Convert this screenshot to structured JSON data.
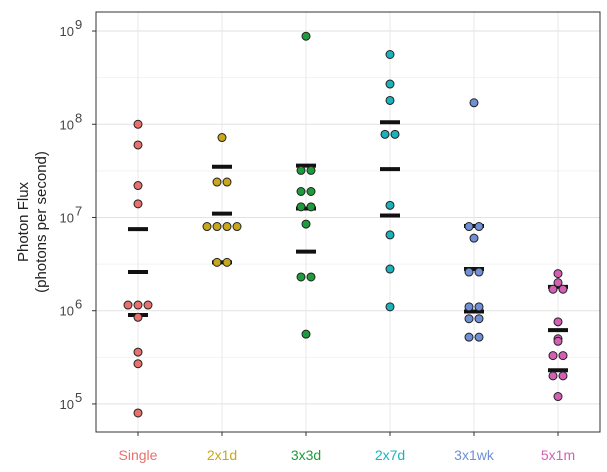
{
  "chart_data": {
    "type": "scatter",
    "title": "",
    "xlabel": "",
    "ylabel": "Photon Flux",
    "ylabel_sub": "(photons per second)",
    "yscale": "log",
    "ylim": [
      50000,
      1600000000
    ],
    "y_ticks": [
      {
        "value": 100000,
        "mantissa": "10",
        "exp": "5"
      },
      {
        "value": 1000000,
        "mantissa": "10",
        "exp": "6"
      },
      {
        "value": 10000000,
        "mantissa": "10",
        "exp": "7"
      },
      {
        "value": 100000000,
        "mantissa": "10",
        "exp": "8"
      },
      {
        "value": 1000000000,
        "mantissa": "10",
        "exp": "9"
      }
    ],
    "grid": true,
    "legend": "none",
    "categories": [
      "Single",
      "2x1d",
      "3x3d",
      "2x7d",
      "3x1wk",
      "5x1m"
    ],
    "colors": [
      "#e8716d",
      "#c9a71a",
      "#1e9b3b",
      "#1ab3bc",
      "#6f8fd6",
      "#d45fb5"
    ],
    "points": [
      [
        100000000,
        60000000,
        22000000,
        14000000,
        1150000,
        1150000,
        1150000,
        850000,
        360000,
        270000,
        80000
      ],
      [
        72000000,
        24000000,
        24000000,
        8000000,
        8000000,
        8000000,
        8000000,
        3300000,
        3300000
      ],
      [
        880000000,
        32000000,
        32000000,
        19000000,
        19000000,
        13000000,
        13000000,
        8500000,
        2300000,
        2300000,
        560000
      ],
      [
        560000000,
        270000000,
        180000000,
        78000000,
        78000000,
        13500000,
        6500000,
        2800000,
        1100000
      ],
      [
        170000000,
        8000000,
        8000000,
        6000000,
        2600000,
        2600000,
        1100000,
        1100000,
        820000,
        820000,
        520000,
        520000
      ],
      [
        2500000,
        2000000,
        1700000,
        1700000,
        760000,
        500000,
        470000,
        330000,
        330000,
        200000,
        200000,
        120000
      ]
    ],
    "summary_bars": [
      [
        7500000,
        2600000,
        900000
      ],
      [
        35000000,
        11000000,
        3300000
      ],
      [
        36000000,
        12500000,
        4300000
      ],
      [
        105000000,
        33000000,
        10500000
      ],
      [
        8100000,
        2800000,
        980000
      ],
      [
        1800000,
        620000,
        230000
      ]
    ]
  }
}
